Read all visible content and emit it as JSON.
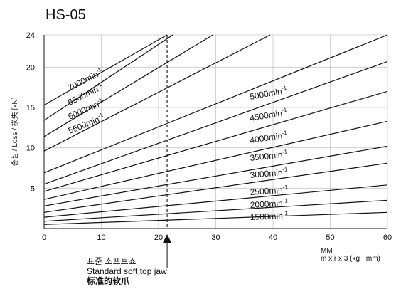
{
  "chart_data": {
    "type": "line",
    "title": "HS-05",
    "ylabel": "손실 / Loss / 损失 [kN]",
    "xlabel": [
      "MM",
      "m x r x 3 (kg · mm)"
    ],
    "xlim": [
      0,
      60
    ],
    "ylim": [
      0,
      24
    ],
    "xticks": [
      0,
      10,
      20,
      30,
      40,
      50,
      60
    ],
    "yticks": [
      5,
      10,
      15,
      20,
      24
    ],
    "grid": true,
    "series": [
      {
        "name": "1500min⁻¹",
        "points": [
          [
            0,
            0.5
          ],
          [
            60,
            2.0
          ]
        ]
      },
      {
        "name": "2000min⁻¹",
        "points": [
          [
            0,
            0.9
          ],
          [
            60,
            3.5
          ]
        ]
      },
      {
        "name": "2500min⁻¹",
        "points": [
          [
            0,
            1.4
          ],
          [
            60,
            5.4
          ]
        ]
      },
      {
        "name": "3000min⁻¹",
        "points": [
          [
            0,
            2.0
          ],
          [
            60,
            8.1
          ]
        ]
      },
      {
        "name": "3500min⁻¹",
        "points": [
          [
            0,
            2.8
          ],
          [
            60,
            10.2
          ]
        ]
      },
      {
        "name": "4000min⁻¹",
        "points": [
          [
            0,
            3.6
          ],
          [
            60,
            13.3
          ]
        ]
      },
      {
        "name": "4500min⁻¹",
        "points": [
          [
            0,
            4.6
          ],
          [
            60,
            17.0
          ]
        ]
      },
      {
        "name": "5000min⁻¹",
        "points": [
          [
            0,
            5.5
          ],
          [
            60,
            20.7
          ]
        ]
      },
      {
        "name": "5500min⁻¹",
        "points": [
          [
            0,
            6.9
          ],
          [
            60,
            24.0
          ]
        ]
      },
      {
        "name": "6000min⁻¹",
        "points": [
          [
            0,
            9.6
          ],
          [
            39.5,
            24.0
          ]
        ]
      },
      {
        "name": "6500min⁻¹",
        "points": [
          [
            0,
            11.4
          ],
          [
            29.5,
            24.0
          ]
        ]
      },
      {
        "name": "7000min⁻¹",
        "points": [
          [
            0,
            13.4
          ],
          [
            22.5,
            24.0
          ]
        ]
      },
      {
        "name": "",
        "points": [
          [
            0,
            15.3
          ],
          [
            21.5,
            24.0
          ]
        ]
      }
    ],
    "labels": [
      {
        "text": "7000min",
        "sup": "-1"
      },
      {
        "text": "6500min",
        "sup": "-1"
      },
      {
        "text": "6000min",
        "sup": "-1"
      },
      {
        "text": "5500min",
        "sup": "-1"
      },
      {
        "text": "5000min",
        "sup": "-1"
      },
      {
        "text": "4500min",
        "sup": "-1"
      },
      {
        "text": "4000min",
        "sup": "-1"
      },
      {
        "text": "3500min",
        "sup": "-1"
      },
      {
        "text": "3000min",
        "sup": "-1"
      },
      {
        "text": "2500min",
        "sup": "-1"
      },
      {
        "text": "2000min",
        "sup": "-1"
      },
      {
        "text": "1500min",
        "sup": "-1"
      }
    ],
    "annotation": {
      "x": 21.5,
      "lines": [
        "표준 소프트죠",
        "Standard soft top jaw",
        "标准的软爪"
      ]
    }
  }
}
